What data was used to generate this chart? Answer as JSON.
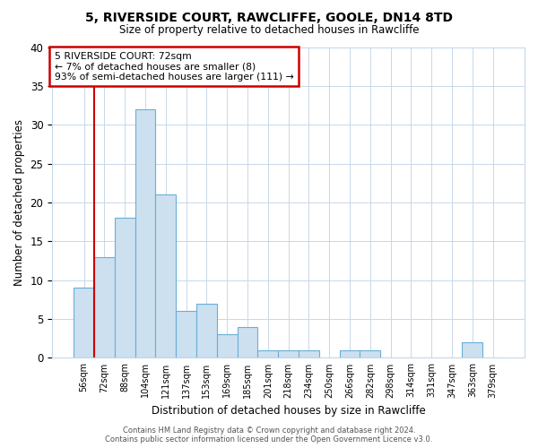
{
  "title1": "5, RIVERSIDE COURT, RAWCLIFFE, GOOLE, DN14 8TD",
  "title2": "Size of property relative to detached houses in Rawcliffe",
  "xlabel": "Distribution of detached houses by size in Rawcliffe",
  "ylabel": "Number of detached properties",
  "categories": [
    "56sqm",
    "72sqm",
    "88sqm",
    "104sqm",
    "121sqm",
    "137sqm",
    "153sqm",
    "169sqm",
    "185sqm",
    "201sqm",
    "218sqm",
    "234sqm",
    "250sqm",
    "266sqm",
    "282sqm",
    "298sqm",
    "314sqm",
    "331sqm",
    "347sqm",
    "363sqm",
    "379sqm"
  ],
  "values": [
    9,
    13,
    18,
    32,
    21,
    6,
    7,
    3,
    4,
    1,
    1,
    1,
    0,
    1,
    1,
    0,
    0,
    0,
    0,
    2,
    0
  ],
  "bar_color": "#cce0f0",
  "bar_edge_color": "#6aaed6",
  "highlight_index": 1,
  "highlight_line_color": "#cc0000",
  "annotation_text": "5 RIVERSIDE COURT: 72sqm\n← 7% of detached houses are smaller (8)\n93% of semi-detached houses are larger (111) →",
  "annotation_box_color": "#ffffff",
  "annotation_box_edge": "#cc0000",
  "footer1": "Contains HM Land Registry data © Crown copyright and database right 2024.",
  "footer2": "Contains public sector information licensed under the Open Government Licence v3.0.",
  "ylim": [
    0,
    40
  ],
  "yticks": [
    0,
    5,
    10,
    15,
    20,
    25,
    30,
    35,
    40
  ],
  "background_color": "#ffffff",
  "grid_color": "#c8d8e8"
}
